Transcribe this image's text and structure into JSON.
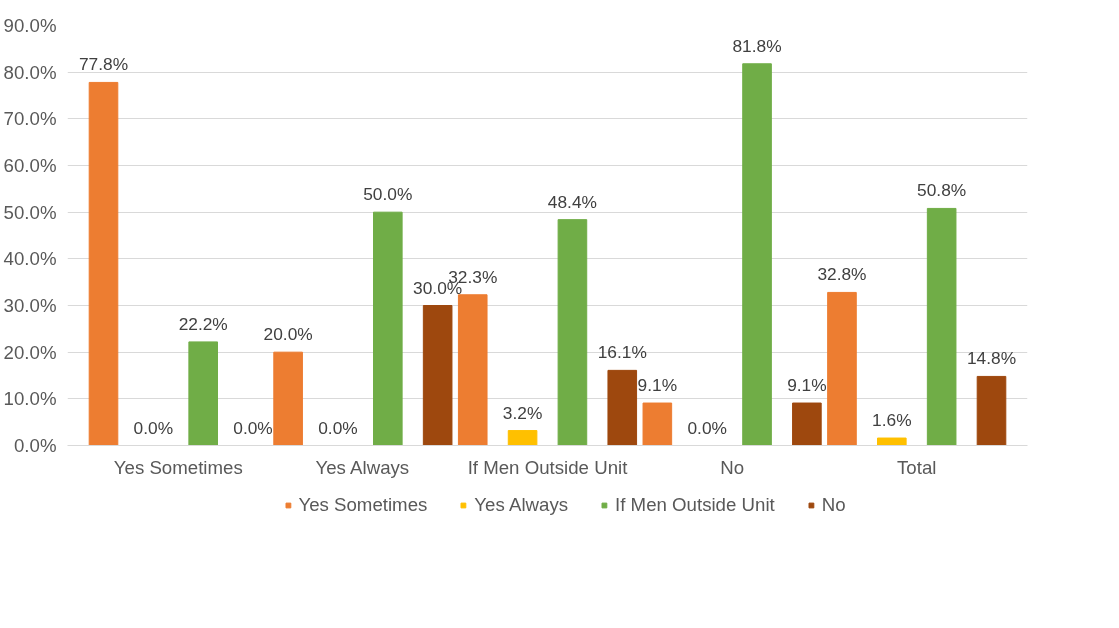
{
  "chart_data": {
    "type": "bar",
    "categories": [
      "Yes Sometimes",
      "Yes Always",
      "If Men Outside Unit",
      "No",
      "Total"
    ],
    "series": [
      {
        "name": "Yes Sometimes",
        "color": "#ed7d31",
        "values": [
          77.8,
          20.0,
          32.3,
          9.1,
          32.8
        ],
        "value_labels": [
          "77.8%",
          "20.0%",
          "32.3%",
          "9.1%",
          "32.8%"
        ]
      },
      {
        "name": "Yes Always",
        "color": "#ffc000",
        "values": [
          0.0,
          0.0,
          3.2,
          0.0,
          1.6
        ],
        "value_labels": [
          "0.0%",
          "0.0%",
          "3.2%",
          "0.0%",
          "1.6%"
        ]
      },
      {
        "name": "If Men Outside Unit",
        "color": "#70ad47",
        "values": [
          22.2,
          50.0,
          48.4,
          81.8,
          50.8
        ],
        "value_labels": [
          "22.2%",
          "50.0%",
          "48.4%",
          "81.8%",
          "50.8%"
        ]
      },
      {
        "name": "No",
        "color": "#9e480e",
        "values": [
          0.0,
          30.0,
          16.1,
          9.1,
          14.8
        ],
        "value_labels": [
          "0.0%",
          "30.0%",
          "16.1%",
          "9.1%",
          "14.8%"
        ]
      }
    ],
    "ylim": [
      0,
      90
    ],
    "yticks": [
      {
        "value": 0,
        "label": "0.0%"
      },
      {
        "value": 10,
        "label": "10.0%"
      },
      {
        "value": 20,
        "label": "20.0%"
      },
      {
        "value": 30,
        "label": "30.0%"
      },
      {
        "value": 40,
        "label": "40.0%"
      },
      {
        "value": 50,
        "label": "50.0%"
      },
      {
        "value": 60,
        "label": "60.0%"
      },
      {
        "value": 70,
        "label": "70.0%"
      },
      {
        "value": 80,
        "label": "80.0%"
      },
      {
        "value": 90,
        "label": "90.0%"
      }
    ],
    "grid": "y",
    "legend": "bottom"
  }
}
